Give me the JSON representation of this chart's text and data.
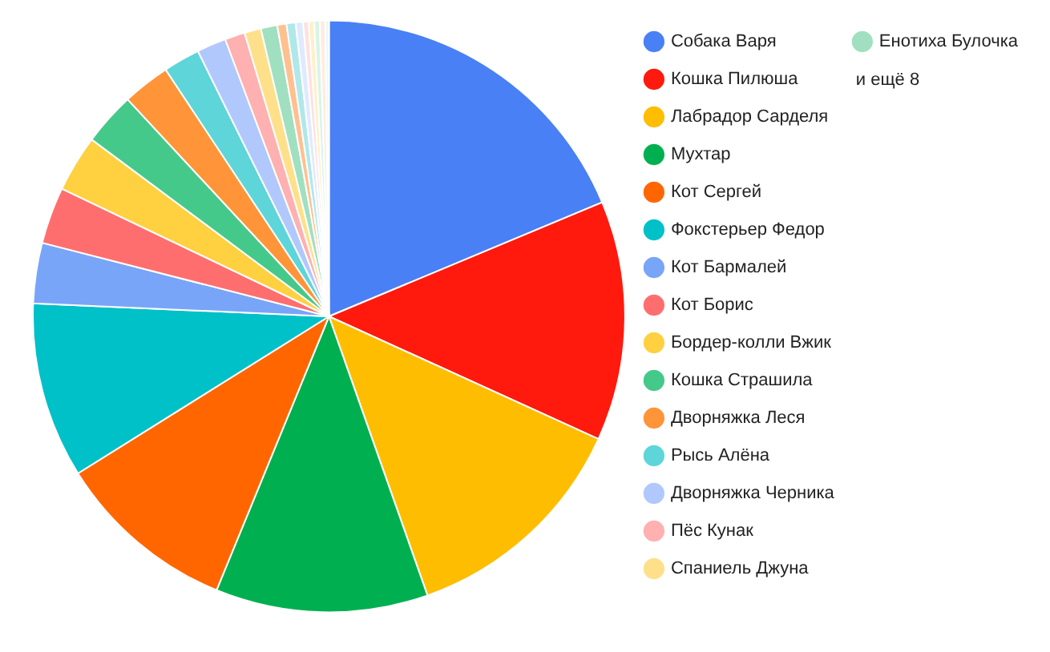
{
  "chart_data": {
    "type": "pie",
    "categories": [
      "Собака Варя",
      "Кошка Пилюша",
      "Лабрадор Сарделя",
      "Мухтар",
      "Кот Сергей",
      "Фокстерьер Федор",
      "Кот Бармалей",
      "Кот Борис",
      "Бордер-колли Вжик",
      "Кошка Страшила",
      "Дворняжка Леся",
      "Рысь Алёна",
      "Дворняжка Черника",
      "Пёс Кунак",
      "Спаниель Джуна",
      "Енотиха Булочка",
      null,
      null,
      null,
      null,
      null,
      null,
      null,
      null
    ],
    "values": [
      18.7,
      13.1,
      12.8,
      11.6,
      9.9,
      9.6,
      3.3,
      3.1,
      3.1,
      2.9,
      2.6,
      2.0,
      1.6,
      1.1,
      0.9,
      0.9,
      0.5,
      0.5,
      0.4,
      0.3,
      0.3,
      0.3,
      0.3,
      0.2
    ],
    "colors": [
      "#4a80f5",
      "#ff1a0d",
      "#ffbd00",
      "#00b050",
      "#ff6600",
      "#00c0c8",
      "#78a5f8",
      "#ff6e6e",
      "#ffd040",
      "#45c98a",
      "#ff9438",
      "#5ed5d8",
      "#b0c8fc",
      "#ffb0b0",
      "#ffe08a",
      "#a0e0c0",
      "#ffc090",
      "#b0e8ea",
      "#e0eafe",
      "#ffe0e0",
      "#fff0c8",
      "#d8f4e6",
      "#ffece0",
      "#e8f8f8"
    ],
    "legend": "right",
    "annotations": [
      "и ещё 8"
    ]
  }
}
